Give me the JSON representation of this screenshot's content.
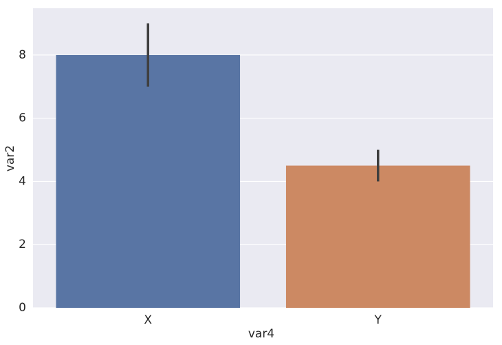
{
  "chart_data": {
    "type": "bar",
    "x_label": "var4",
    "y_label": "var2",
    "categories": [
      "X",
      "Y"
    ],
    "series": [
      {
        "name": "var2",
        "values": [
          8,
          4.5
        ],
        "colors": [
          "#5975a4",
          "#cc8963"
        ],
        "ci_low": [
          7,
          4
        ],
        "ci_high": [
          9,
          5
        ]
      }
    ],
    "ylim": [
      0,
      9.48
    ],
    "yticks": [
      0,
      2,
      4,
      6,
      8
    ],
    "grid": true
  }
}
